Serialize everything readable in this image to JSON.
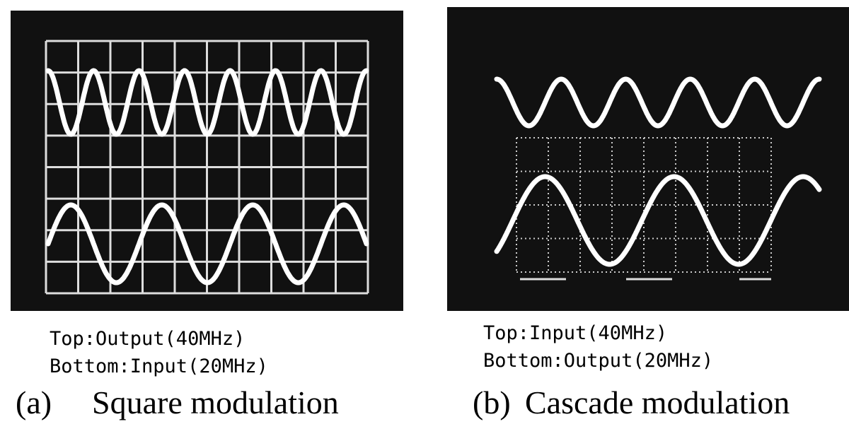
{
  "panels": [
    {
      "caption_top": "Top:Output(40MHz)",
      "caption_bottom": "Bottom:Input(20MHz)",
      "label": "(a)",
      "title": "Square modulation"
    },
    {
      "caption_top": "Top:Input(40MHz)",
      "caption_bottom": "Bottom:Output(20MHz)",
      "label": "(b)",
      "title": "Cascade modulation"
    }
  ]
}
